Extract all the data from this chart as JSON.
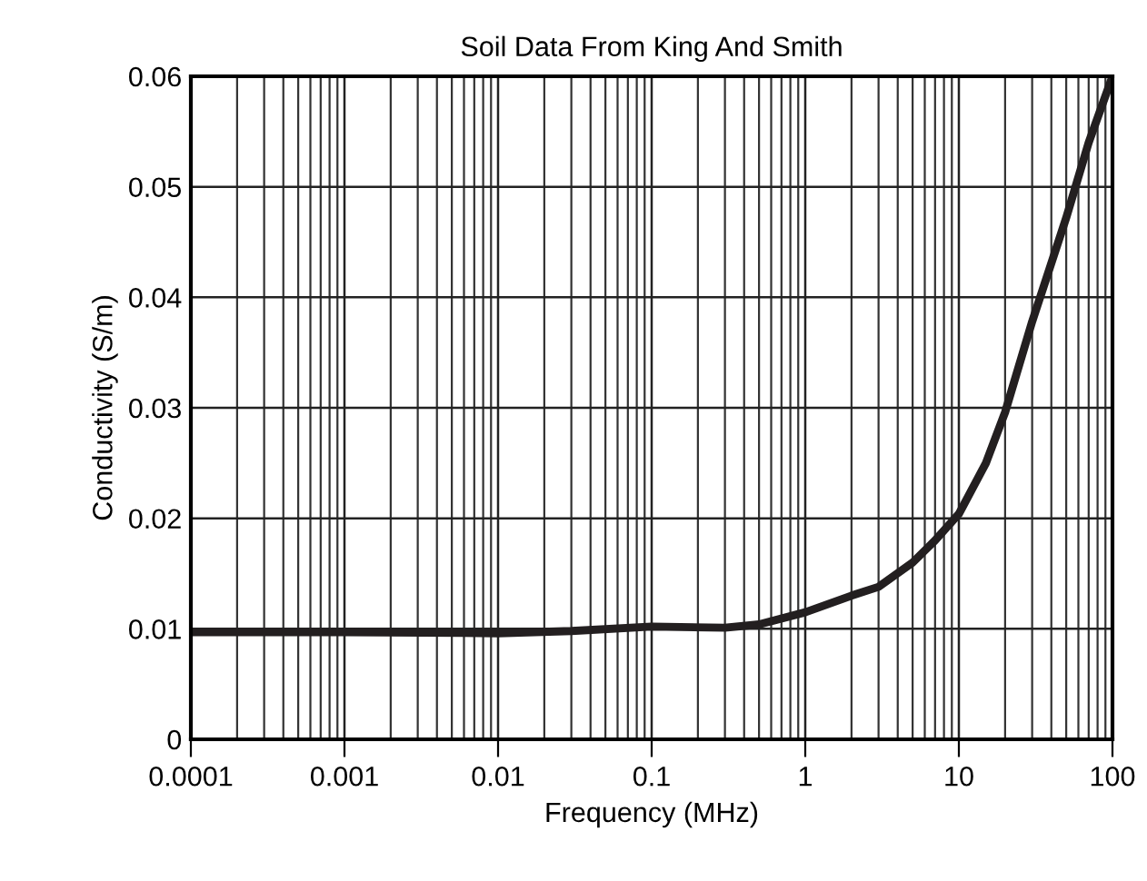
{
  "chart_data": {
    "type": "line",
    "title": "Soil Data From King And Smith",
    "xlabel": "Frequency (MHz)",
    "ylabel": "Conductivity (S/m)",
    "log": "x",
    "grid": true,
    "marker": "none",
    "line_style": "solid",
    "x": [
      0.0001,
      0.001,
      0.01,
      0.03,
      0.1,
      0.3,
      0.5,
      1,
      2,
      3,
      5,
      7,
      10,
      15,
      20,
      30,
      50,
      70,
      100
    ],
    "series": [
      {
        "color": "#231f20",
        "values": [
          0.0097,
          0.0097,
          0.0096,
          0.0098,
          0.0102,
          0.0101,
          0.0104,
          0.0115,
          0.013,
          0.0138,
          0.016,
          0.018,
          0.0204,
          0.025,
          0.0296,
          0.0378,
          0.0472,
          0.054,
          0.06
        ]
      }
    ],
    "xlim": [
      0.0001,
      100
    ],
    "xticks": [
      0.0001,
      0.001,
      0.01,
      0.1,
      1,
      10,
      100
    ],
    "ylim": [
      0,
      0.06
    ],
    "yticks": [
      0,
      0.01,
      0.02,
      0.03,
      0.04,
      0.05,
      0.06
    ]
  }
}
